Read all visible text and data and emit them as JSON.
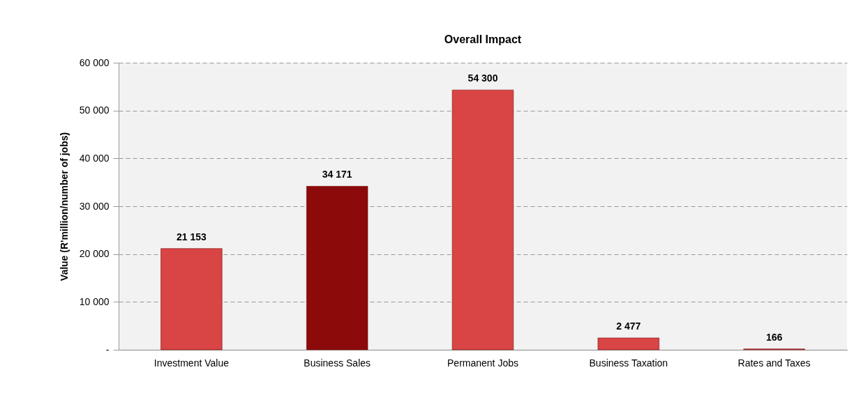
{
  "chart_data": {
    "type": "bar",
    "title": "Overall Impact",
    "ylabel": "Value (R'million/number of jobs)",
    "categories": [
      "Investment Value",
      "Business Sales",
      "Permanent Jobs",
      "Business Taxation",
      "Rates and Taxes"
    ],
    "values": [
      21153,
      34171,
      54300,
      2477,
      166
    ],
    "colors": [
      "#d94444",
      "#8c0a0a",
      "#d94444",
      "#d94444",
      "#d94444"
    ],
    "value_labels": [
      "21 153",
      "34 171",
      "54 300",
      "2 477",
      "166"
    ],
    "ylim": [
      0,
      60000
    ],
    "yticks": [
      {
        "value": 0,
        "label": "-"
      },
      {
        "value": 10000,
        "label": "10 000"
      },
      {
        "value": 20000,
        "label": "20 000"
      },
      {
        "value": 30000,
        "label": "30 000"
      },
      {
        "value": 40000,
        "label": "40 000"
      },
      {
        "value": 50000,
        "label": "50 000"
      },
      {
        "value": 60000,
        "label": "60 000"
      }
    ],
    "grid": "y"
  }
}
